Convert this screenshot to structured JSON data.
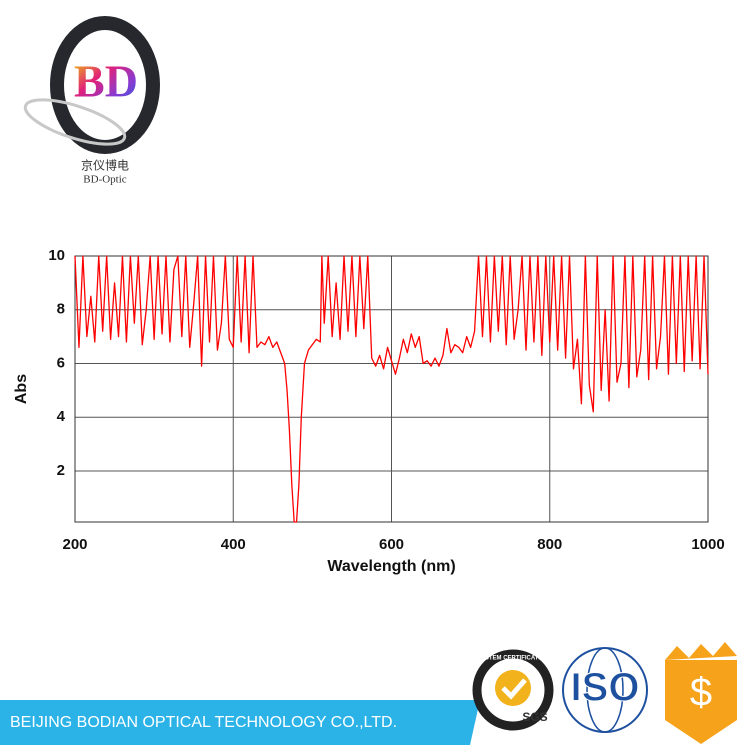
{
  "logo": {
    "mark": "BD",
    "name": "京仪博电",
    "subname": "BD-Optic"
  },
  "chart_data": {
    "type": "line",
    "xlabel": "Wavelength (nm)",
    "ylabel": "Abs",
    "xlim": [
      200,
      1000
    ],
    "xticks": [
      200,
      400,
      600,
      800,
      1000
    ],
    "ylim": [
      0.1,
      10
    ],
    "yticks": [
      2,
      4,
      6,
      8,
      10
    ],
    "grid": true,
    "series": [
      {
        "color": "#ff0000",
        "x": [
          200,
          205,
          210,
          215,
          220,
          225,
          230,
          235,
          240,
          245,
          250,
          255,
          260,
          265,
          270,
          275,
          280,
          285,
          290,
          295,
          300,
          305,
          310,
          315,
          320,
          325,
          330,
          335,
          340,
          345,
          350,
          355,
          360,
          365,
          370,
          375,
          380,
          385,
          390,
          395,
          400,
          405,
          410,
          415,
          420,
          425,
          430,
          435,
          440,
          445,
          450,
          455,
          460,
          465,
          468,
          471,
          474,
          477,
          480,
          483,
          486,
          490,
          495,
          500,
          505,
          510,
          512,
          515,
          520,
          525,
          530,
          535,
          540,
          545,
          550,
          555,
          560,
          565,
          570,
          575,
          580,
          585,
          590,
          595,
          600,
          605,
          610,
          615,
          620,
          625,
          630,
          635,
          640,
          645,
          650,
          655,
          660,
          665,
          670,
          675,
          680,
          685,
          690,
          695,
          700,
          705,
          710,
          715,
          720,
          725,
          730,
          735,
          740,
          745,
          750,
          755,
          760,
          765,
          770,
          775,
          780,
          785,
          790,
          795,
          800,
          805,
          810,
          815,
          820,
          825,
          830,
          835,
          840,
          845,
          850,
          855,
          860,
          865,
          870,
          875,
          880,
          885,
          890,
          895,
          900,
          905,
          910,
          915,
          920,
          925,
          930,
          935,
          940,
          945,
          950,
          955,
          960,
          965,
          970,
          975,
          980,
          985,
          990,
          995,
          1000
        ],
        "values": [
          10,
          6.6,
          10,
          7,
          8.5,
          6.8,
          10,
          7.2,
          10,
          6.9,
          9,
          7,
          10,
          6.8,
          10,
          7.5,
          10,
          6.7,
          8,
          10,
          6.9,
          10,
          7.1,
          10,
          6.8,
          9.5,
          10,
          7,
          10,
          6.6,
          8.2,
          10,
          5.9,
          10,
          6.8,
          10,
          6.5,
          7.5,
          10,
          6.9,
          6.6,
          10,
          6.8,
          10,
          6.4,
          10,
          6.6,
          6.8,
          6.7,
          7,
          6.6,
          6.8,
          6.4,
          6,
          5,
          3.5,
          1.5,
          0.1,
          0.1,
          1.5,
          4,
          6,
          6.5,
          6.7,
          6.9,
          6.8,
          10,
          7.5,
          10,
          7,
          9,
          6.9,
          10,
          7.2,
          10,
          7,
          10,
          7.3,
          10,
          6.2,
          5.9,
          6.3,
          5.8,
          6.6,
          6.1,
          5.6,
          6.2,
          6.9,
          6.4,
          7.1,
          6.6,
          7,
          6,
          6.1,
          5.9,
          6.2,
          5.9,
          6.3,
          7.3,
          6.4,
          6.7,
          6.6,
          6.4,
          7,
          6.6,
          7.2,
          10,
          7,
          10,
          6.8,
          10,
          7.2,
          10,
          6.7,
          10,
          6.9,
          8,
          10,
          6.5,
          10,
          6.8,
          10,
          6.3,
          10,
          6.8,
          10,
          6.5,
          10,
          6.2,
          10,
          5.8,
          6.9,
          4.5,
          10,
          5.2,
          4.2,
          10,
          5,
          8,
          4.6,
          10,
          5.3,
          6,
          10,
          5.1,
          10,
          5.5,
          6.5,
          10,
          5.4,
          10,
          5.8,
          7,
          10,
          5.6,
          10,
          6,
          10,
          5.7,
          10,
          6.1,
          10,
          5.8,
          10,
          5.6
        ]
      }
    ]
  },
  "footer": {
    "company": "BEIJING BODIAN OPTICAL TECHNOLOGY CO.,LTD.",
    "cert_ring": "SYSTEM CERTIFICATION",
    "sgs": "SGS",
    "iso": "ISO",
    "money": "$"
  }
}
